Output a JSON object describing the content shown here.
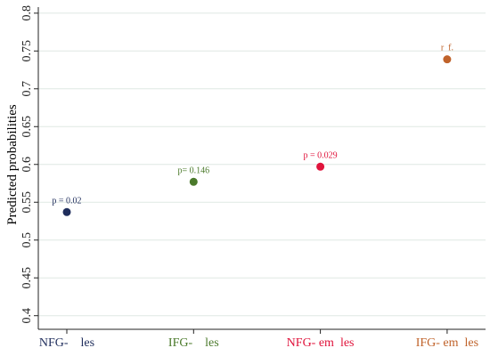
{
  "chart_data": {
    "type": "dot",
    "y_label": "Predicted probabilities",
    "categories": [
      "NFG-    les",
      "IFG-    les",
      "NFG- em  les",
      "IFG- em  les"
    ],
    "values": [
      0.537,
      0.577,
      0.597,
      0.739
    ],
    "colors": [
      "#1f2d5c",
      "#4b7a2b",
      "#e0143c",
      "#c0632b"
    ],
    "annotations": [
      "p = 0.02",
      "p= 0.146",
      "p = 0.029",
      "r  f."
    ],
    "ylim": [
      0.382,
      0.808
    ],
    "yticks": [
      0.4,
      0.45,
      0.5,
      0.55,
      0.6,
      0.65,
      0.7,
      0.75,
      0.8
    ],
    "grid": true
  }
}
